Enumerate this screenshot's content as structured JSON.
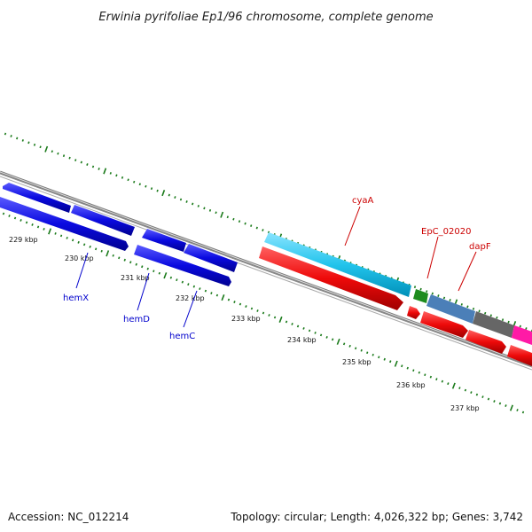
{
  "title": "Erwinia pyrifoliae Ep1/96 chromosome, complete genome",
  "footer": {
    "accession": "Accession: NC_012214",
    "summary": "Topology: circular; Length: 4,026,322 bp; Genes: 3,742"
  },
  "ticks": [
    {
      "label": "229 kbp"
    },
    {
      "label": "230 kbp"
    },
    {
      "label": "231 kbp"
    },
    {
      "label": "232 kbp"
    },
    {
      "label": "233 kbp"
    },
    {
      "label": "234 kbp"
    },
    {
      "label": "235 kbp"
    },
    {
      "label": "236 kbp"
    },
    {
      "label": "237 kbp"
    }
  ],
  "gene_labels": [
    {
      "name": "hemX",
      "color": "#0000cc"
    },
    {
      "name": "hemD",
      "color": "#0000cc"
    },
    {
      "name": "hemC",
      "color": "#0000cc"
    },
    {
      "name": "cyaA",
      "color": "#cc0000"
    },
    {
      "name": "EpC_02020",
      "color": "#cc0000"
    },
    {
      "name": "dapF",
      "color": "#cc0000"
    }
  ],
  "colors": {
    "backbone": "#7a7a7a",
    "tick": "#1a7a1a",
    "blue_gene": "#0a0ae0",
    "red_gene": "#ee0a0a",
    "cyan_gene": "#22c4ec",
    "green_gene": "#1e8c1e",
    "steel_gene": "#4b7fb8",
    "gray_gene": "#666666",
    "pink_gene": "#ff1aa6"
  }
}
